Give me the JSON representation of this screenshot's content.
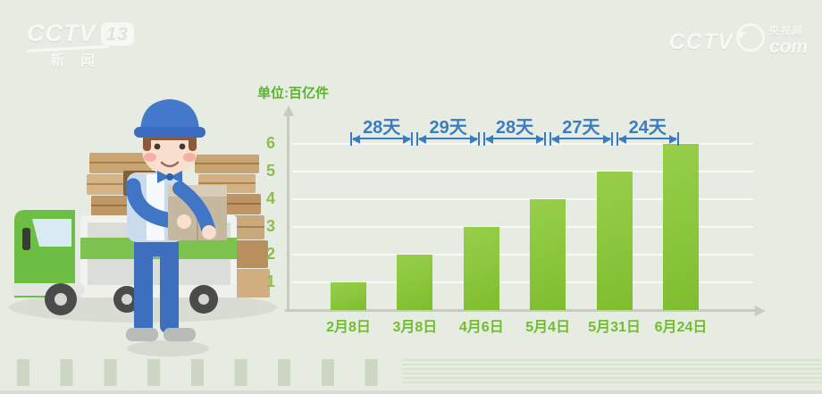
{
  "watermarks": {
    "top_left": {
      "brand": "CCTV",
      "channel": "13",
      "subtitle": "新闻"
    },
    "top_right": {
      "brand": "CCTV",
      "site": "央视网",
      "domain": "com"
    }
  },
  "chart_data": {
    "type": "bar",
    "title": "",
    "unit_label": "单位:百亿件",
    "categories": [
      "2月8日",
      "3月8日",
      "4月6日",
      "5月4日",
      "5月31日",
      "6月24日"
    ],
    "values": [
      1,
      2,
      3,
      4,
      5,
      6
    ],
    "intervals": [
      "28天",
      "29天",
      "28天",
      "27天",
      "24天"
    ],
    "y_ticks": [
      1,
      2,
      3,
      4,
      5,
      6
    ],
    "ylim": [
      0,
      6.5
    ],
    "grid": true,
    "legend": "none",
    "colors": {
      "background": "#E6ECE2",
      "bar_green": "#8AC63B",
      "axis_gray": "#C6CCC1",
      "gridline": "#FFFFFF",
      "date_label_green": "#72BC30",
      "y_tick_green": "#8FBC4F",
      "unit_label_green": "#5CB231",
      "interval_blue": "#3A7CC2"
    }
  },
  "illustration": {
    "description": "cartoon courier in blue uniform holding parcel, green delivery truck, stacks of cardboard boxes",
    "shadow_color": "#D8DDD3",
    "truck_green": "#6CBE45",
    "box_tan": "#C9A572",
    "uniform_blue": "#4076C5"
  }
}
